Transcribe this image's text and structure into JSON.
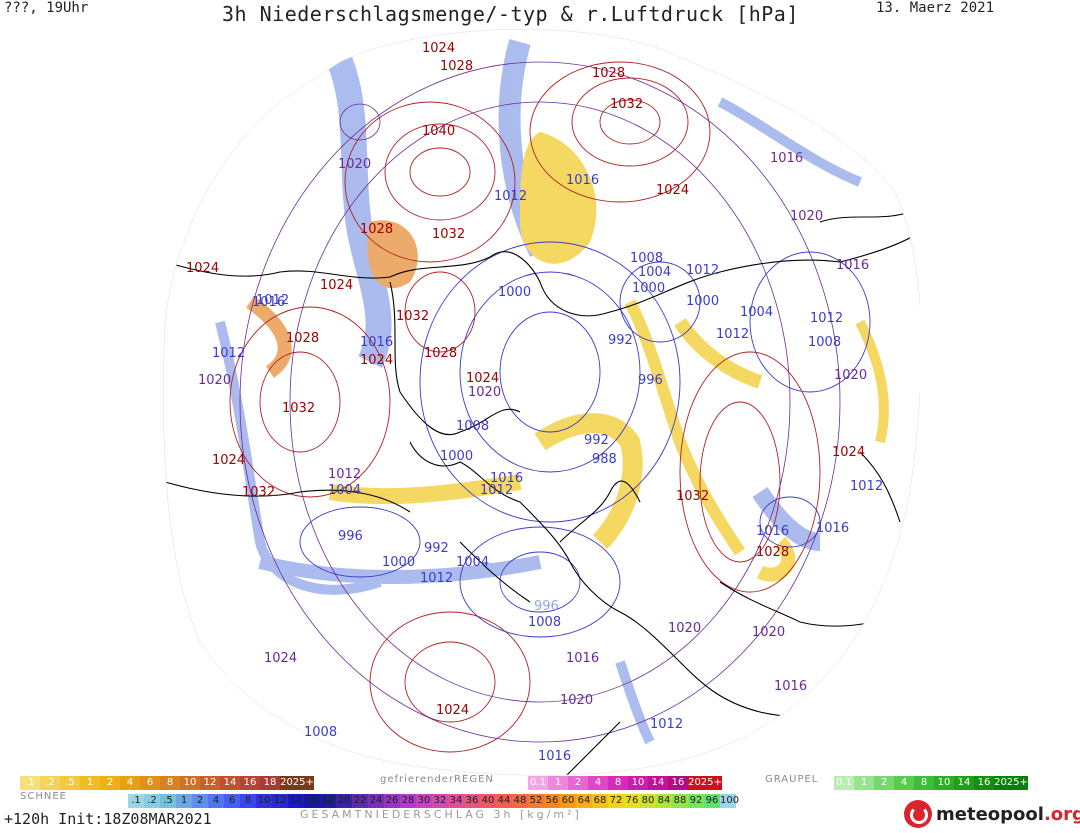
{
  "header": {
    "left": "???, 19Uhr",
    "title": "3h Niederschlagsmenge/-typ & r.Luftdruck [hPa]",
    "date": "13. Maerz 2021"
  },
  "map": {
    "high_pressure_labels": [
      "1024",
      "1028",
      "1028",
      "1032",
      "1040",
      "1024",
      "1032",
      "1028",
      "1024",
      "1024",
      "1032",
      "1024",
      "1028",
      "1032",
      "1028",
      "1024",
      "1032",
      "1024",
      "1024",
      "1032",
      "1028",
      "1024"
    ],
    "low_pressure_labels": [
      "1020",
      "1012",
      "1016",
      "1016",
      "1012",
      "1020",
      "1016",
      "1012",
      "1020",
      "1000",
      "1008",
      "1004",
      "1000",
      "1012",
      "1000",
      "1004",
      "1012",
      "992",
      "996",
      "1008",
      "992",
      "988",
      "1008",
      "1016",
      "1016",
      "1012",
      "1004",
      "1012",
      "1020",
      "1000",
      "1012",
      "1012",
      "1004",
      "996",
      "992",
      "1000",
      "1004",
      "1012",
      "1016",
      "1020",
      "996",
      "1008",
      "1016",
      "1020",
      "1020",
      "1016",
      "1016",
      "1012",
      "1016",
      "1016",
      "1024",
      "1020",
      "1008"
    ],
    "colors": {
      "land_coast": "#000000",
      "high_isobar": "#b22222",
      "low_isobar": "#3a3acc",
      "rain": "#f2cc2e",
      "snow": "#8fa5e8",
      "mix": "#e8903a"
    }
  },
  "legend": {
    "snow_label": "SCHNEE",
    "snow_scale": [
      ".1",
      ".2",
      ".5",
      "1",
      "2",
      "4",
      "6",
      "8",
      "10",
      "12",
      "14",
      "16",
      "18",
      "2025+"
    ],
    "freezing_rain_label": "gefrierenderREGEN",
    "freezing_rain_scale": [
      "0.1",
      "1",
      "2",
      "4",
      "8",
      "10",
      "14",
      "16",
      "2025+"
    ],
    "graupel_label": "GRAUPEL",
    "graupel_scale": [
      "0.1",
      "1",
      "2",
      "4",
      "8",
      "10",
      "14",
      "16",
      "2025+"
    ],
    "total_scale": [
      ".1",
      ".2",
      ".5",
      "1",
      "2",
      "4",
      "6",
      "8",
      "10",
      "12",
      "14",
      "16",
      "18",
      "20",
      "22",
      "24",
      "26",
      "28",
      "30",
      "32",
      "34",
      "36",
      "40",
      "44",
      "48",
      "52",
      "56",
      "60",
      "64",
      "68",
      "72",
      "76",
      "80",
      "84",
      "88",
      "92",
      "96",
      "100"
    ]
  },
  "footer": {
    "init": "+120h  Init:18Z08MAR2021",
    "caption": "GESAMTNIEDERSCHLAG 3h [kg/m²]",
    "brand_main": "meteopool",
    "brand_tld": ".org"
  }
}
